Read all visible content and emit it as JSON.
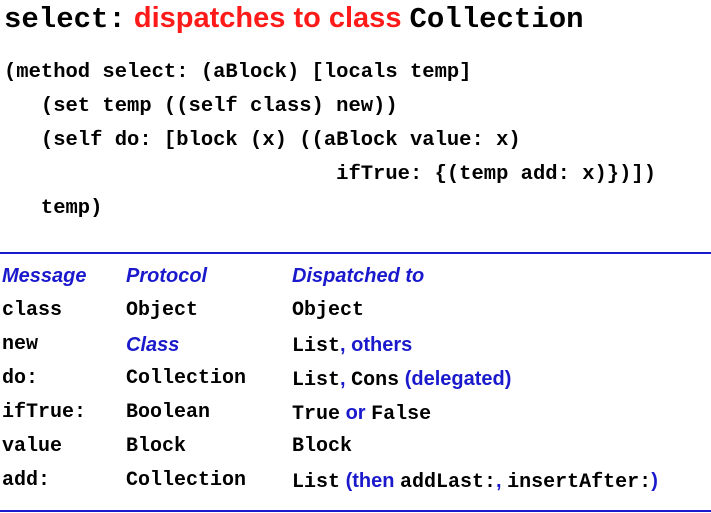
{
  "title": {
    "selector": "select:",
    "phrase": " dispatches to class ",
    "class_name": "Collection"
  },
  "code": {
    "line1": "(method select: (aBlock) [locals temp]",
    "line2": "   (set temp ((self class) new))",
    "line3": "   (self do: [block (x) ((aBlock value: x)",
    "line4": "                           ifTrue: {(temp add: x)})])",
    "line5": "   temp)"
  },
  "table": {
    "headers": {
      "message": "Message",
      "protocol": "Protocol",
      "dispatched": "Dispatched to"
    },
    "rows": [
      {
        "message": "class",
        "protocol": "Object",
        "dispatched": [
          {
            "text": "Object",
            "style": "mono"
          }
        ]
      },
      {
        "message": "new",
        "protocol": "Class",
        "protocol_style": "blue-it",
        "dispatched": [
          {
            "text": "List",
            "style": "mono"
          },
          {
            "text": ", others",
            "style": "blue"
          }
        ]
      },
      {
        "message": "do:",
        "protocol": "Collection",
        "dispatched": [
          {
            "text": "List",
            "style": "mono"
          },
          {
            "text": ", ",
            "style": "blue"
          },
          {
            "text": "Cons",
            "style": "mono"
          },
          {
            "text": " (delegated)",
            "style": "blue"
          }
        ]
      },
      {
        "message": "ifTrue:",
        "protocol": "Boolean",
        "dispatched": [
          {
            "text": "True",
            "style": "mono"
          },
          {
            "text": " or ",
            "style": "blue"
          },
          {
            "text": "False",
            "style": "mono"
          }
        ]
      },
      {
        "message": "value",
        "protocol": "Block",
        "dispatched": [
          {
            "text": "Block",
            "style": "mono"
          }
        ]
      },
      {
        "message": "add:",
        "protocol": "Collection",
        "dispatched": [
          {
            "text": "List",
            "style": "mono"
          },
          {
            "text": " (then ",
            "style": "blue"
          },
          {
            "text": "addLast:",
            "style": "mono"
          },
          {
            "text": ", ",
            "style": "blue"
          },
          {
            "text": "insertAfter:",
            "style": "mono"
          },
          {
            "text": ")",
            "style": "blue"
          }
        ]
      }
    ]
  },
  "colors": {
    "title_red": "#ff1a1a",
    "accent_blue": "#1a1acc",
    "text": "#000000"
  }
}
